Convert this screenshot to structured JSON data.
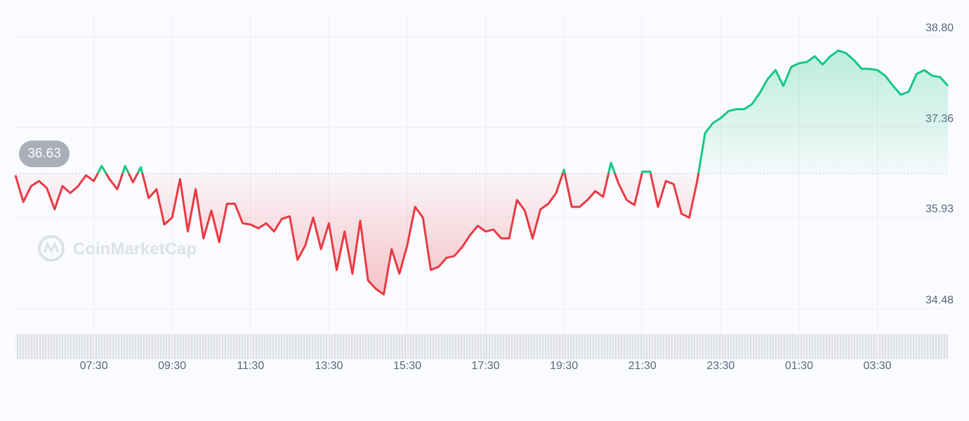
{
  "chart_data": {
    "type": "line",
    "reference": 36.63,
    "watermark": "CoinMarketCap",
    "up_color": "#16c784",
    "down_color": "#ea3943",
    "categories": [
      null,
      null,
      null,
      null,
      null,
      null,
      null,
      null,
      null,
      null,
      "07:30",
      null,
      null,
      null,
      null,
      null,
      null,
      null,
      null,
      null,
      "09:30",
      null,
      null,
      null,
      null,
      null,
      null,
      null,
      null,
      null,
      "11:30",
      null,
      null,
      null,
      null,
      null,
      null,
      null,
      null,
      null,
      "13:30",
      null,
      null,
      null,
      null,
      null,
      null,
      null,
      null,
      null,
      "15:30",
      null,
      null,
      null,
      null,
      null,
      null,
      null,
      null,
      null,
      "17:30",
      null,
      null,
      null,
      null,
      null,
      null,
      null,
      null,
      null,
      "19:30",
      null,
      null,
      null,
      null,
      null,
      null,
      null,
      null,
      null,
      "21:30",
      null,
      null,
      null,
      null,
      null,
      null,
      null,
      null,
      null,
      "23:30",
      null,
      null,
      null,
      null,
      null,
      null,
      null,
      null,
      null,
      "01:30",
      null,
      null,
      null,
      null,
      null,
      null,
      null,
      null,
      null,
      "03:30",
      null,
      null,
      null,
      null,
      null,
      null,
      null,
      null,
      null
    ],
    "values": [
      36.6,
      36.18,
      36.43,
      36.51,
      36.4,
      36.06,
      36.43,
      36.32,
      36.43,
      36.6,
      36.51,
      36.75,
      36.54,
      36.38,
      36.75,
      36.49,
      36.73,
      36.24,
      36.38,
      35.82,
      35.93,
      36.54,
      35.71,
      36.38,
      35.6,
      36.04,
      35.54,
      36.15,
      36.15,
      35.84,
      35.82,
      35.76,
      35.84,
      35.71,
      35.91,
      35.95,
      35.26,
      35.49,
      35.93,
      35.43,
      35.84,
      35.1,
      35.71,
      35.04,
      35.88,
      34.93,
      34.8,
      34.71,
      35.43,
      35.04,
      35.49,
      36.1,
      35.93,
      35.1,
      35.15,
      35.29,
      35.32,
      35.46,
      35.65,
      35.8,
      35.71,
      35.74,
      35.6,
      35.6,
      36.21,
      36.04,
      35.6,
      36.06,
      36.15,
      36.32,
      36.69,
      36.1,
      36.1,
      36.21,
      36.35,
      36.26,
      36.8,
      36.46,
      36.21,
      36.13,
      36.66,
      36.66,
      36.1,
      36.51,
      36.46,
      35.99,
      35.93,
      36.51,
      37.27,
      37.43,
      37.51,
      37.62,
      37.65,
      37.65,
      37.73,
      37.91,
      38.13,
      38.27,
      38.02,
      38.32,
      38.38,
      38.4,
      38.49,
      38.36,
      38.49,
      38.58,
      38.54,
      38.43,
      38.29,
      38.29,
      38.27,
      38.18,
      38.02,
      37.88,
      37.93,
      38.21,
      38.27,
      38.18,
      38.16,
      38.02
    ],
    "ylim": [
      34.15,
      39.16
    ],
    "yticks": [
      34.48,
      35.93,
      37.36,
      {
        "value": 38.8,
        "label": "38.80"
      }
    ],
    "grid": true
  }
}
